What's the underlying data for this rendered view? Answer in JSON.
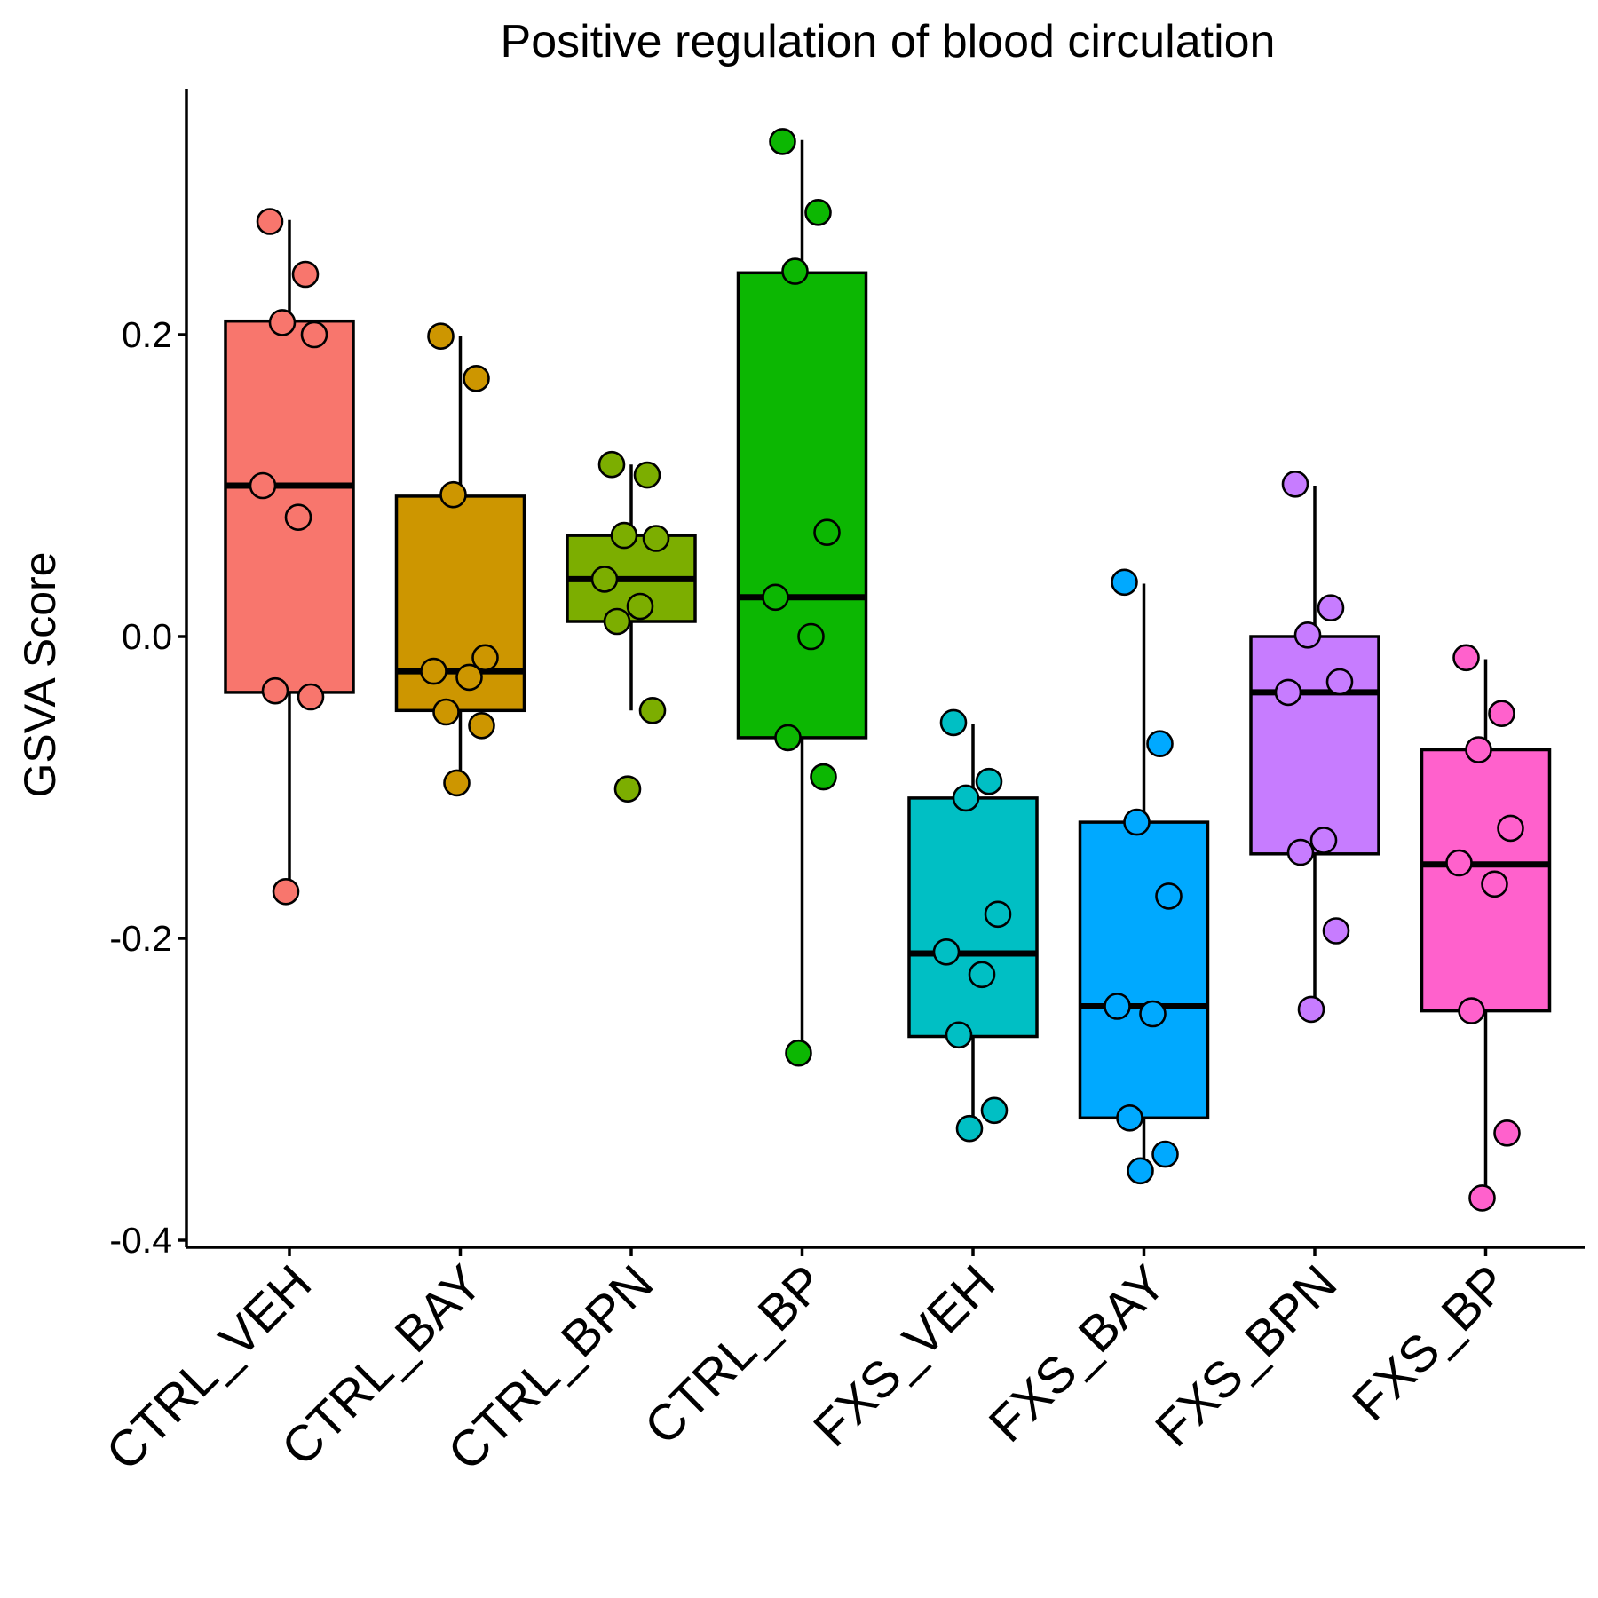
{
  "chart_data": {
    "type": "box",
    "title": "Positive regulation of blood circulation",
    "xlabel": "",
    "ylabel": "GSVA Score",
    "ylim": [
      -0.405,
      0.365
    ],
    "yticks": [
      0.2,
      0.0,
      -0.2,
      -0.4
    ],
    "ytick_labels": [
      "0.2",
      "0.0",
      "-0.2",
      "-0.4"
    ],
    "grid": false,
    "legend": "none",
    "groups": [
      {
        "name": "CTRL_VEH",
        "color": "#F8766D",
        "q1": -0.037,
        "median": 0.1,
        "q3": 0.209,
        "whisker_low": -0.168,
        "whisker_high": 0.276,
        "points": [
          0.275,
          0.24,
          0.208,
          0.2,
          0.1,
          0.079,
          -0.036,
          -0.04,
          -0.169
        ]
      },
      {
        "name": "CTRL_BAY",
        "color": "#CD9600",
        "q1": -0.049,
        "median": -0.023,
        "q3": 0.093,
        "whisker_low": -0.097,
        "whisker_high": 0.199,
        "points": [
          0.199,
          0.171,
          0.094,
          -0.014,
          -0.023,
          -0.027,
          -0.05,
          -0.059,
          -0.097
        ]
      },
      {
        "name": "CTRL_BPN",
        "color": "#7CAE00",
        "q1": 0.01,
        "median": 0.038,
        "q3": 0.067,
        "whisker_low": -0.049,
        "whisker_high": 0.114,
        "points": [
          0.114,
          0.107,
          0.067,
          0.065,
          0.038,
          0.02,
          0.01,
          -0.049,
          -0.101
        ]
      },
      {
        "name": "CTRL_BP",
        "color": "#0CB702",
        "q1": -0.067,
        "median": 0.026,
        "q3": 0.241,
        "whisker_low": -0.276,
        "whisker_high": 0.329,
        "points": [
          0.328,
          0.281,
          0.242,
          0.069,
          0.026,
          0.0,
          -0.067,
          -0.093,
          -0.276
        ]
      },
      {
        "name": "FXS_VEH",
        "color": "#00BFC4",
        "q1": -0.265,
        "median": -0.21,
        "q3": -0.107,
        "whisker_low": -0.326,
        "whisker_high": -0.058,
        "points": [
          -0.057,
          -0.096,
          -0.107,
          -0.184,
          -0.209,
          -0.224,
          -0.264,
          -0.314,
          -0.326
        ]
      },
      {
        "name": "FXS_BAY",
        "color": "#00A9FF",
        "q1": -0.319,
        "median": -0.245,
        "q3": -0.123,
        "whisker_low": -0.357,
        "whisker_high": 0.035,
        "points": [
          0.036,
          -0.071,
          -0.123,
          -0.172,
          -0.245,
          -0.25,
          -0.319,
          -0.343,
          -0.354
        ]
      },
      {
        "name": "FXS_BPN",
        "color": "#C77CFF",
        "q1": -0.144,
        "median": -0.037,
        "q3": 0.0,
        "whisker_low": -0.247,
        "whisker_high": 0.1,
        "points": [
          0.101,
          0.019,
          0.001,
          -0.03,
          -0.037,
          -0.135,
          -0.143,
          -0.195,
          -0.247
        ]
      },
      {
        "name": "FXS_BP",
        "color": "#FF61CC",
        "q1": -0.248,
        "median": -0.151,
        "q3": -0.075,
        "whisker_low": -0.372,
        "whisker_high": -0.015,
        "points": [
          -0.014,
          -0.051,
          -0.075,
          -0.127,
          -0.15,
          -0.164,
          -0.248,
          -0.329,
          -0.372
        ]
      }
    ]
  }
}
